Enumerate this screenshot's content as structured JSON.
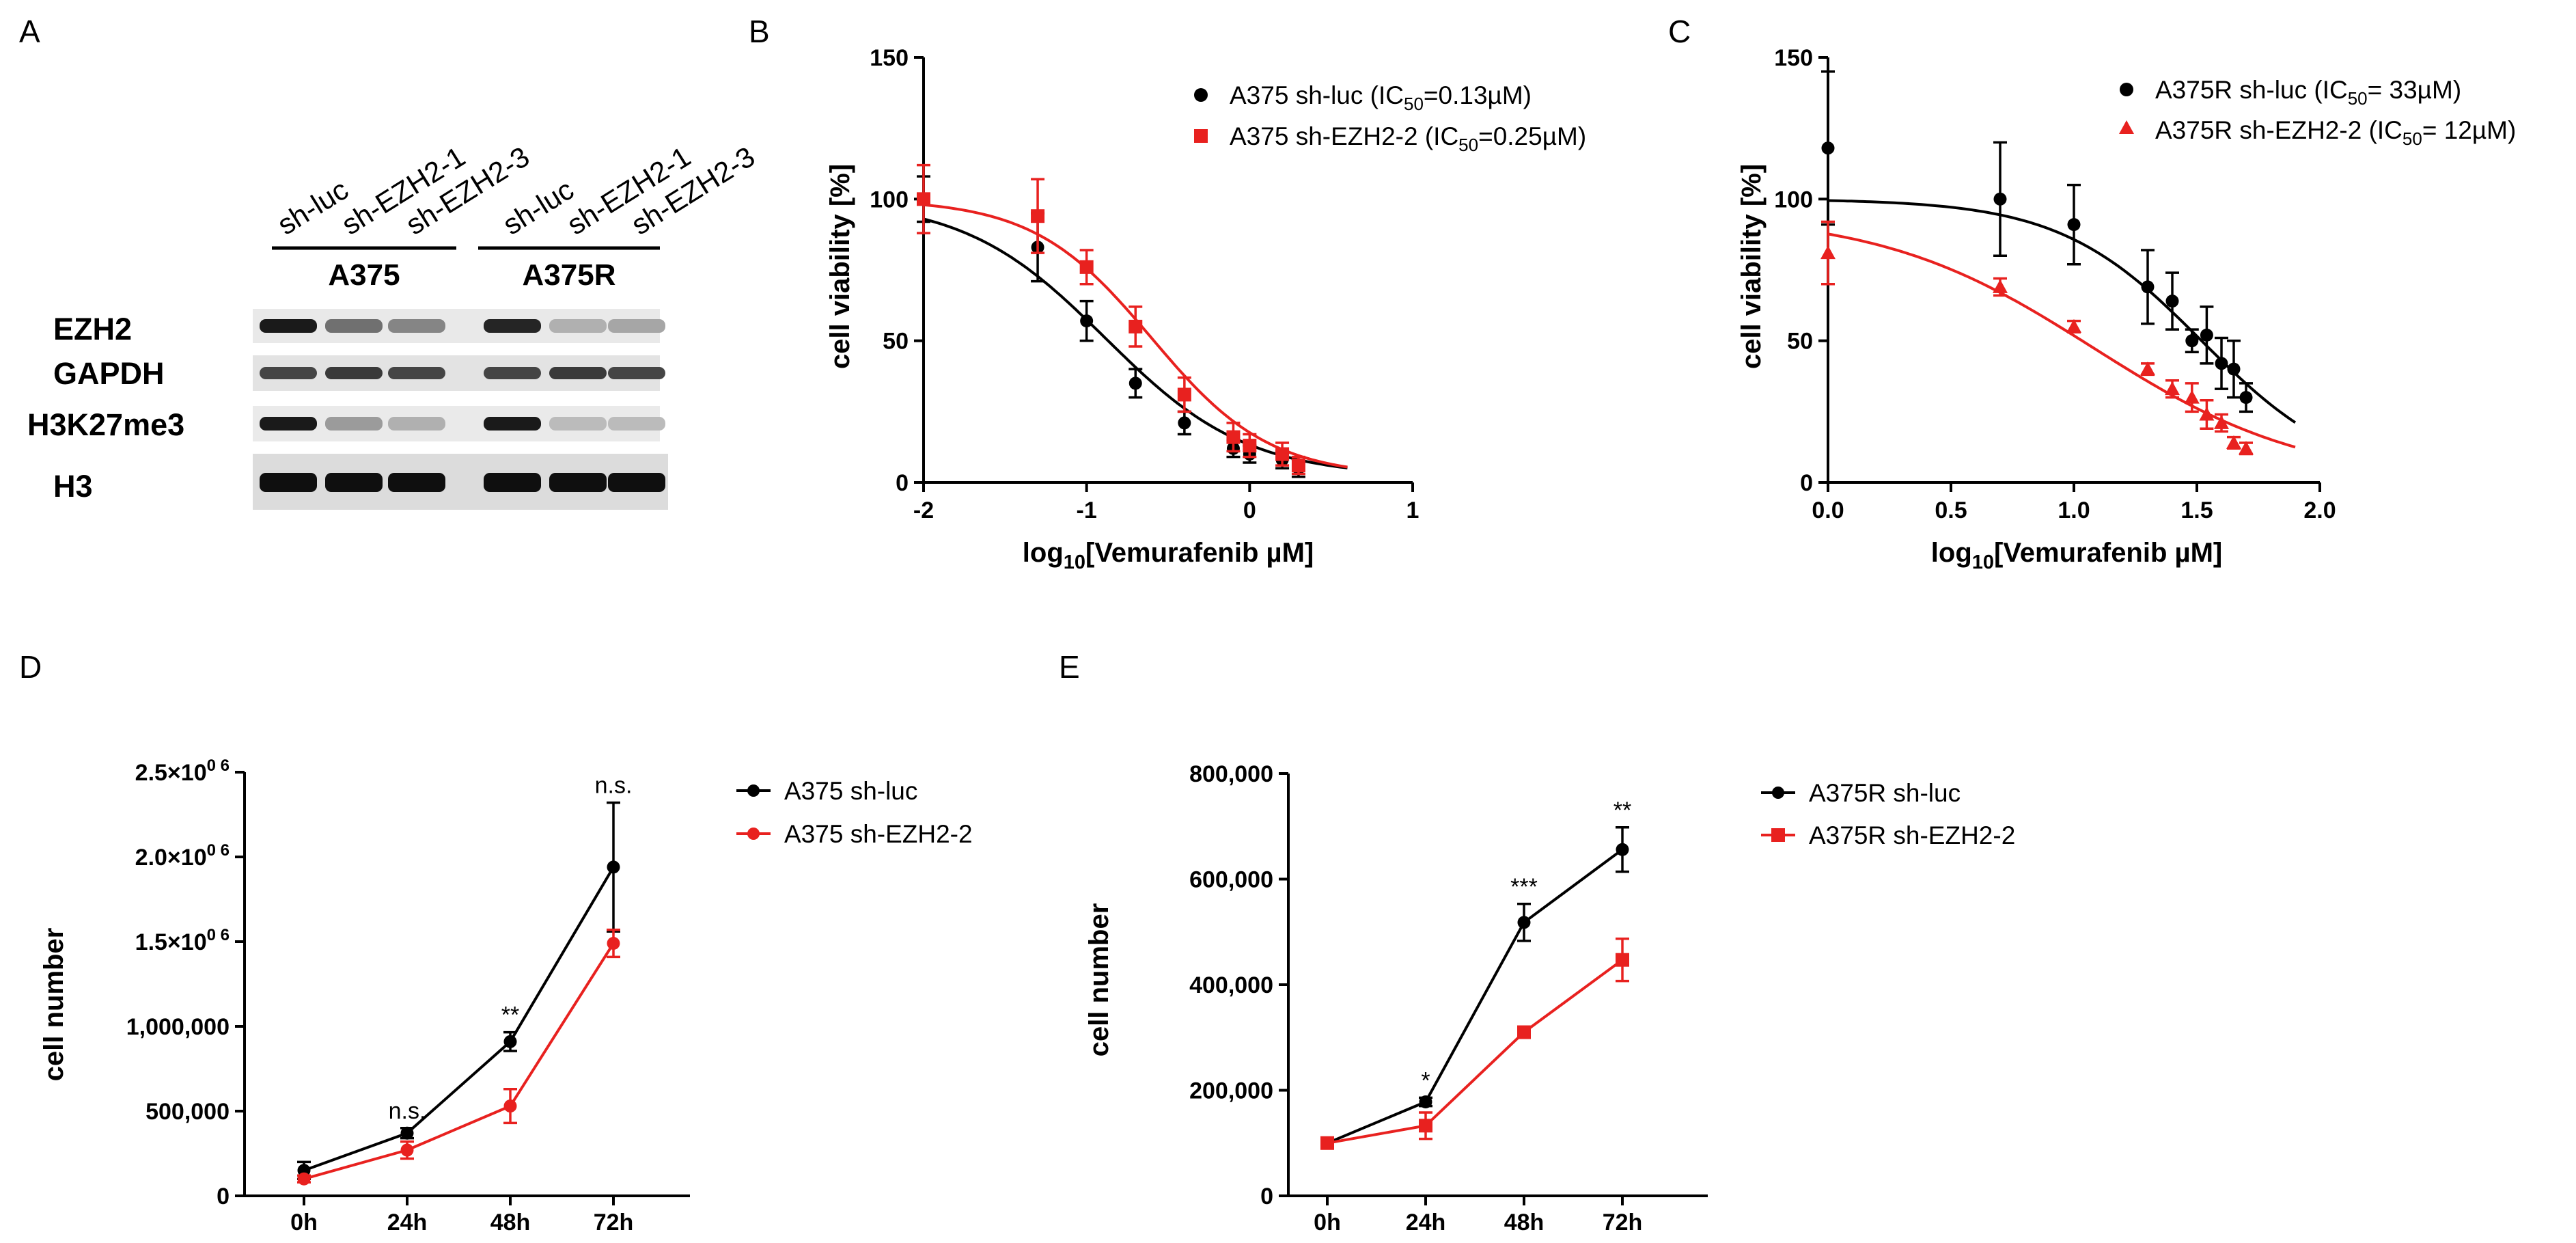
{
  "panel_letters": [
    "A",
    "B",
    "C",
    "D",
    "E"
  ],
  "colors": {
    "control": "#000000",
    "knockdown": "#e8211f"
  },
  "blot": {
    "lanes": [
      "sh-luc",
      "sh-EZH2-1",
      "sh-EZH2-3",
      "sh-luc",
      "sh-EZH2-1",
      "sh-EZH2-3"
    ],
    "cell_lines": [
      "A375",
      "A375R"
    ],
    "rows": [
      "EZH2",
      "GAPDH",
      "H3K27me3",
      "H3"
    ],
    "band_intensity": [
      [
        0.95,
        0.55,
        0.45,
        0.9,
        0.25,
        0.3
      ],
      [
        0.75,
        0.8,
        0.75,
        0.75,
        0.8,
        0.75
      ],
      [
        0.95,
        0.35,
        0.25,
        0.95,
        0.2,
        0.2
      ],
      [
        1.0,
        1.0,
        1.0,
        1.0,
        1.0,
        1.0
      ]
    ]
  },
  "chart_data": [
    {
      "panel": "B",
      "type": "scatter",
      "xlabel_main": "log",
      "xlabel_sub": "10",
      "xlabel_rest": "[Vemurafenib µM]",
      "ylabel": "cell viability [%]",
      "xlim": [
        -2,
        1
      ],
      "ylim": [
        0,
        150
      ],
      "xticks": [
        "-2",
        "-1",
        "0",
        "1"
      ],
      "yticks": [
        "0",
        "50",
        "100",
        "150"
      ],
      "legend_position": "top-right",
      "series": [
        {
          "name": "A375 sh-luc (IC",
          "name_sub": "50",
          "name_tail": "=0.13µM)",
          "color": "#000000",
          "marker": "circle",
          "x": [
            -2,
            -1.3,
            -1,
            -0.7,
            -0.4,
            -0.1,
            0,
            0.2,
            0.3
          ],
          "y": [
            100,
            83,
            57,
            35,
            21,
            12,
            10,
            8,
            5
          ],
          "err": [
            8,
            12,
            7,
            5,
            4,
            3,
            3,
            3,
            3
          ],
          "fit": {
            "bottom": 2,
            "top": 100,
            "ic50_log": -0.886,
            "hill": 1.0
          }
        },
        {
          "name": "A375 sh-EZH2-2 (IC",
          "name_sub": "50",
          "name_tail": "=0.25µM)",
          "color": "#e8211f",
          "marker": "square",
          "x": [
            -2,
            -1.3,
            -1,
            -0.7,
            -0.4,
            -0.1,
            0,
            0.2,
            0.3
          ],
          "y": [
            100,
            94,
            76,
            55,
            31,
            16,
            13,
            10,
            6
          ],
          "err": [
            12,
            13,
            6,
            7,
            6,
            5,
            4,
            4,
            3
          ],
          "fit": {
            "bottom": 2,
            "top": 100,
            "ic50_log": -0.602,
            "hill": 1.2
          }
        }
      ]
    },
    {
      "panel": "C",
      "type": "scatter",
      "xlabel_main": "log",
      "xlabel_sub": "10",
      "xlabel_rest": "[Vemurafenib µM]",
      "ylabel": "cell viability [%]",
      "xlim": [
        0,
        2
      ],
      "ylim": [
        0,
        150
      ],
      "xticks": [
        "0.0",
        "0.5",
        "1.0",
        "1.5",
        "2.0"
      ],
      "yticks": [
        "0",
        "50",
        "100",
        "150"
      ],
      "legend_position": "top-right",
      "series": [
        {
          "name": "A375R sh-luc (IC",
          "name_sub": "50",
          "name_tail": "= 33µM)",
          "color": "#000000",
          "marker": "circle",
          "x": [
            0,
            0.7,
            1.0,
            1.3,
            1.4,
            1.48,
            1.54,
            1.6,
            1.65,
            1.7
          ],
          "y": [
            118,
            100,
            91,
            69,
            64,
            50,
            52,
            42,
            40,
            30
          ],
          "err": [
            27,
            20,
            14,
            13,
            10,
            4,
            10,
            9,
            10,
            5
          ],
          "fit": {
            "bottom": 0,
            "top": 100,
            "ic50_log": 1.519,
            "hill": 1.5
          }
        },
        {
          "name": "A375R sh-EZH2-2 (IC",
          "name_sub": "50",
          "name_tail": "= 12µM)",
          "color": "#e8211f",
          "marker": "triangle",
          "x": [
            0,
            0.7,
            1.0,
            1.3,
            1.4,
            1.48,
            1.54,
            1.6,
            1.65,
            1.7
          ],
          "y": [
            81,
            69,
            55,
            40,
            33,
            30,
            24,
            21,
            14,
            12
          ],
          "err": [
            11,
            3,
            2,
            2,
            3,
            5,
            5,
            3,
            2,
            2
          ],
          "fit": {
            "bottom": 0,
            "top": 95,
            "ic50_log": 1.079,
            "hill": 1.0
          }
        }
      ]
    },
    {
      "panel": "D",
      "type": "line",
      "categories": [
        "0h",
        "24h",
        "48h",
        "72h"
      ],
      "ylabel": "cell number",
      "ylim": [
        0,
        2500000
      ],
      "yticks": [
        {
          "base": "",
          "sup": "",
          "text": "0"
        },
        {
          "base": "",
          "sup": "",
          "text": "500,000"
        },
        {
          "base": "",
          "sup": "",
          "text": "1,000,000"
        },
        {
          "base": "1.5×10",
          "sup": "0 6",
          "text": ""
        },
        {
          "base": "2.0×10",
          "sup": "0 6",
          "text": ""
        },
        {
          "base": "2.5×10",
          "sup": "0 6",
          "text": ""
        }
      ],
      "significance": [
        "",
        "n.s.",
        "**",
        "n.s."
      ],
      "legend_position": "top-right",
      "series": [
        {
          "name": "A375 sh-luc",
          "color": "#000000",
          "marker": "circle",
          "values": [
            150000,
            370000,
            910000,
            1940000
          ],
          "err": [
            50000,
            30000,
            55000,
            380000
          ]
        },
        {
          "name": "A375 sh-EZH2-2",
          "color": "#e8211f",
          "marker": "circle",
          "values": [
            100000,
            270000,
            530000,
            1490000
          ],
          "err": [
            20000,
            50000,
            100000,
            80000
          ]
        }
      ]
    },
    {
      "panel": "E",
      "type": "line",
      "categories": [
        "0h",
        "24h",
        "48h",
        "72h"
      ],
      "ylabel": "cell number",
      "ylim": [
        0,
        800000
      ],
      "yticks": [
        "0",
        "200,000",
        "400,000",
        "600,000",
        "800,000"
      ],
      "significance": [
        "",
        "*",
        "***",
        "**"
      ],
      "legend_position": "top-right",
      "series": [
        {
          "name": "A375R sh-luc",
          "color": "#000000",
          "marker": "circle",
          "values": [
            100000,
            178000,
            518000,
            656000
          ],
          "err": [
            5000,
            8000,
            35000,
            42000
          ]
        },
        {
          "name": "A375R sh-EZH2-2",
          "color": "#e8211f",
          "marker": "square",
          "values": [
            100000,
            133000,
            310000,
            447000
          ],
          "err": [
            5000,
            25000,
            8000,
            40000
          ]
        }
      ]
    }
  ]
}
